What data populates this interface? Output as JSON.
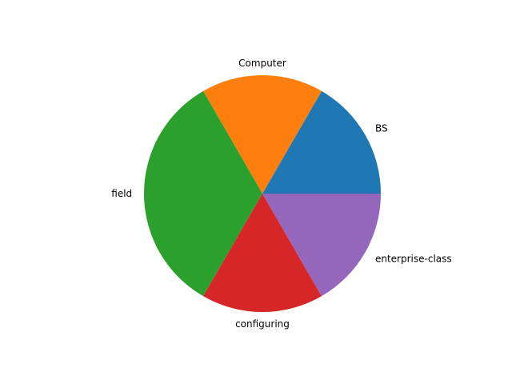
{
  "chart_data": {
    "type": "pie",
    "labels": [
      "BS",
      "Computer",
      "field",
      "configuring",
      "enterprise-class"
    ],
    "values": [
      1,
      1,
      2,
      1,
      1
    ],
    "colors": [
      "#1f77b4",
      "#ff7f0e",
      "#2ca02c",
      "#d62728",
      "#9467bd"
    ],
    "start_angle_deg": 0,
    "direction": "counterclockwise",
    "title": "",
    "legend": "none"
  }
}
